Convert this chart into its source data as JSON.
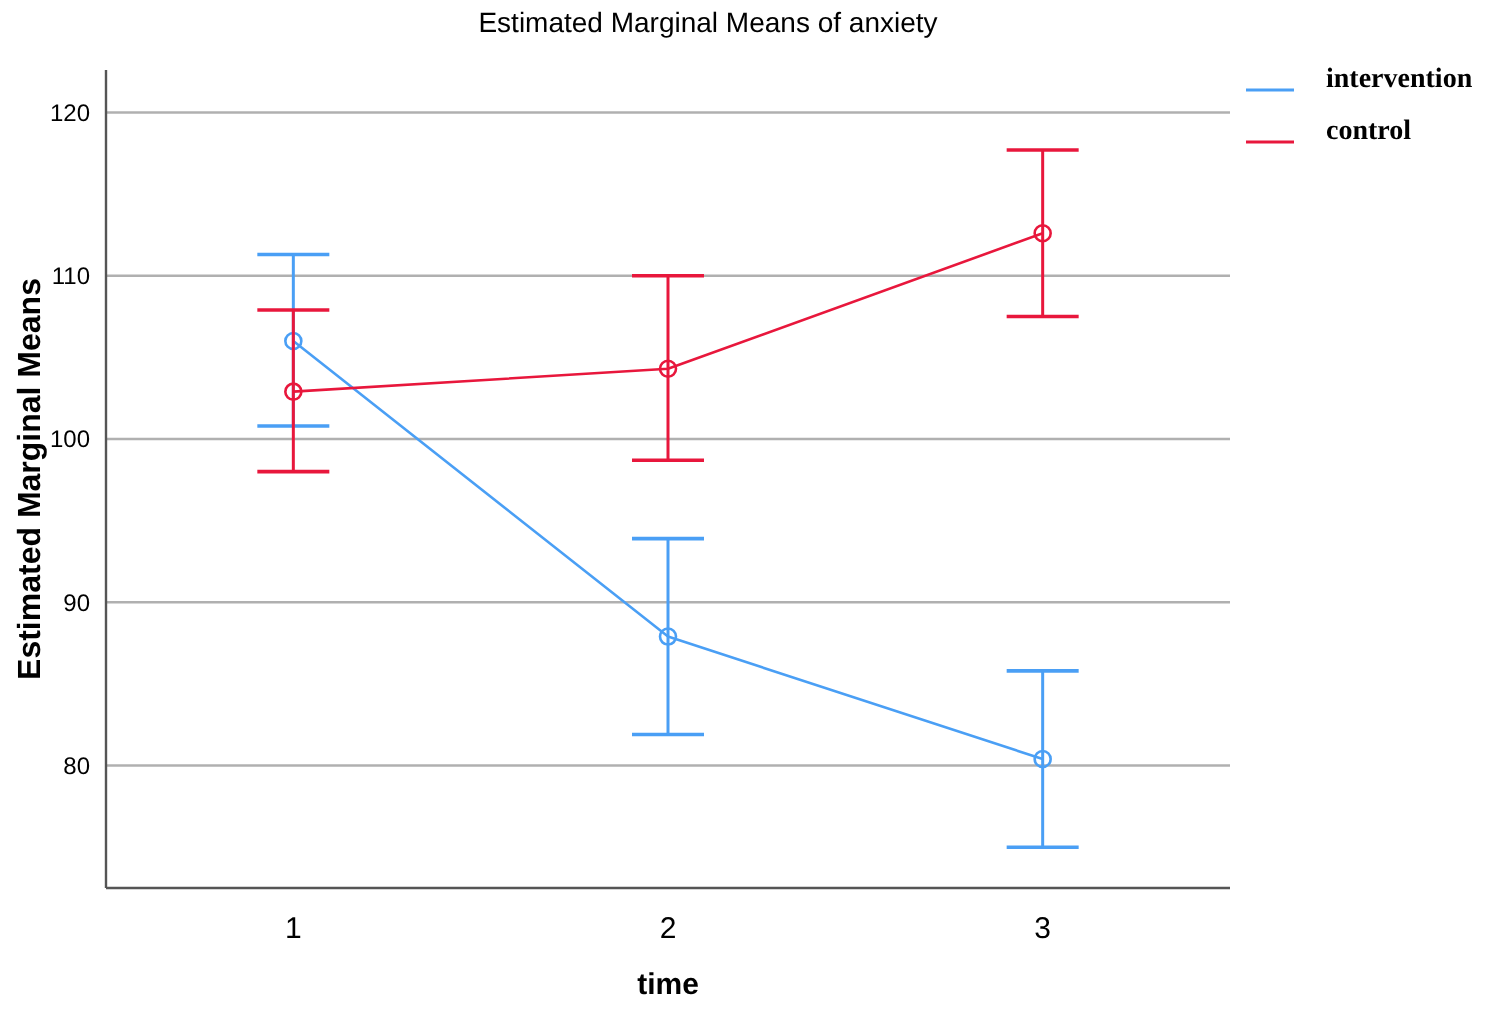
{
  "chart_data": {
    "type": "line",
    "title": "Estimated Marginal Means of anxiety",
    "xlabel": "time",
    "ylabel": "Estimated Marginal Means",
    "categories": [
      "1",
      "2",
      "3"
    ],
    "series": [
      {
        "name": "intervention",
        "color": "#4a9ff5",
        "values": [
          106.0,
          87.9,
          80.4
        ],
        "errors": [
          [
            100.8,
            111.3
          ],
          [
            81.9,
            93.9
          ],
          [
            75.0,
            85.8
          ]
        ]
      },
      {
        "name": "control",
        "color": "#e8173c",
        "values": [
          102.9,
          104.3,
          112.6
        ],
        "errors": [
          [
            98.0,
            107.9
          ],
          [
            98.7,
            110.0
          ],
          [
            107.5,
            117.7
          ]
        ]
      }
    ],
    "ylim": [
      72.5,
      122.6
    ],
    "yticks": [
      80,
      90,
      100,
      110,
      120
    ],
    "grid": "y",
    "legend": "top right",
    "marker": "circle",
    "line_style": "solid"
  }
}
